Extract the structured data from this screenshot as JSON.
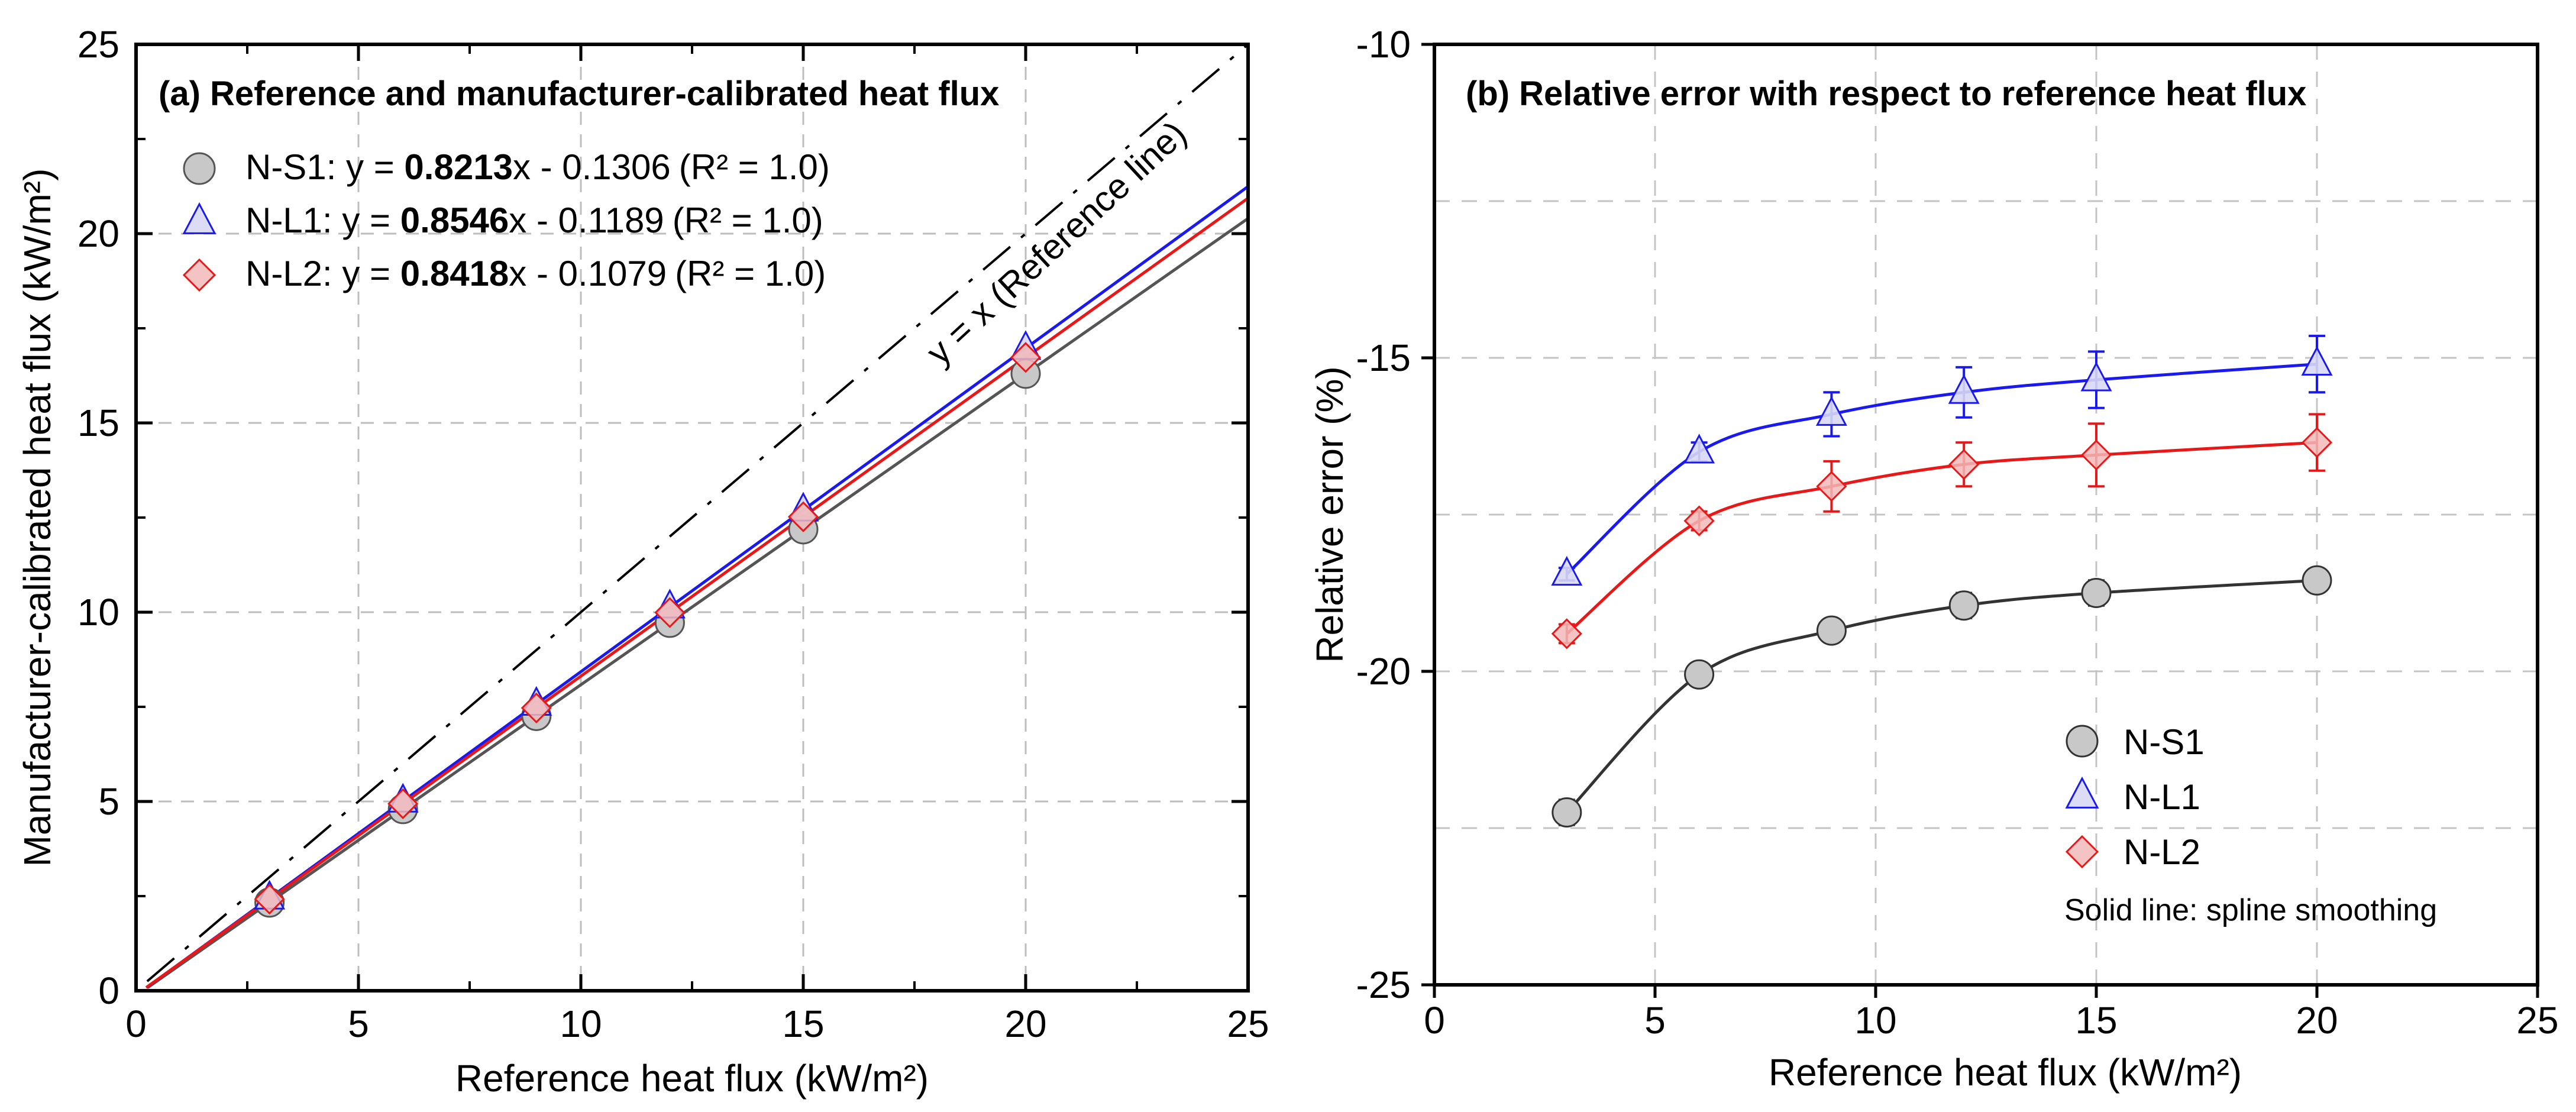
{
  "chart_data": [
    {
      "type": "line",
      "title": "(a) Reference and manufacturer-calibrated heat flux",
      "xlabel": "Reference heat flux (kW/m²)",
      "ylabel": "Manufacturer-calibrated heat flux (kW/m²)",
      "xlim": [
        0,
        25
      ],
      "ylim": [
        0,
        25
      ],
      "xticks": [
        "0",
        "5",
        "10",
        "15",
        "20",
        "25"
      ],
      "yticks": [
        "0",
        "5",
        "10",
        "15",
        "20",
        "25"
      ],
      "grid": true,
      "x": [
        3,
        6,
        9,
        12,
        15,
        20
      ],
      "reference_line": {
        "label": "y = x (Reference line)",
        "slope": 1,
        "intercept": 0
      },
      "series": [
        {
          "name": "N-S1",
          "slope": 0.8213,
          "intercept": -0.1306,
          "values": [
            2.33,
            4.8,
            7.26,
            9.72,
            12.19,
            16.3
          ],
          "legend_prefix": "N-S1: y = ",
          "slope_text": "0.8213",
          "rest_text": "x - 0.1306",
          "r2_text": "(R² = 1.0)",
          "color": "#555555",
          "marker": "circle",
          "fill": "#c8c8c8"
        },
        {
          "name": "N-L1",
          "slope": 0.8546,
          "intercept": -0.1189,
          "values": [
            2.45,
            5.01,
            7.57,
            10.14,
            12.7,
            16.97
          ],
          "legend_prefix": "N-L1: y = ",
          "slope_text": "0.8546",
          "rest_text": "x - 0.1189",
          "r2_text": "(R² = 1.0)",
          "color": "#1a1aee",
          "marker": "triangle",
          "fill": "#d8d8f4"
        },
        {
          "name": "N-L2",
          "slope": 0.8418,
          "intercept": -0.1079,
          "values": [
            2.42,
            4.94,
            7.47,
            9.99,
            12.52,
            16.73
          ],
          "legend_prefix": "N-L2: y = ",
          "slope_text": "0.8418",
          "rest_text": "x - 0.1079",
          "r2_text": "(R² = 1.0)",
          "color": "#e81818",
          "marker": "diamond",
          "fill": "#f2b8b8"
        }
      ]
    },
    {
      "type": "line",
      "title": "(b) Relative error with respect to reference heat flux",
      "xlabel": "Reference heat flux (kW/m²)",
      "ylabel": "Relative error (%)",
      "xlim": [
        0,
        25
      ],
      "ylim": [
        -25,
        -10
      ],
      "xticks": [
        "0",
        "5",
        "10",
        "15",
        "20",
        "25"
      ],
      "yticks": [
        "-25",
        "-20",
        "-15",
        "-10"
      ],
      "grid": true,
      "x": [
        3,
        6,
        9,
        12,
        15,
        20
      ],
      "note": "Solid line: spline smoothing",
      "series": [
        {
          "name": "N-S1",
          "values": [
            -22.25,
            -20.05,
            -19.35,
            -18.95,
            -18.75,
            -18.55
          ],
          "errors": [
            0.2,
            0.15,
            0.15,
            0.2,
            0.2,
            0.15
          ],
          "color": "#333333",
          "marker": "circle",
          "fill": "#c8c8c8"
        },
        {
          "name": "N-L1",
          "values": [
            -18.45,
            -16.5,
            -15.9,
            -15.55,
            -15.35,
            -15.1
          ],
          "errors": [
            0.1,
            0.15,
            0.35,
            0.4,
            0.45,
            0.45
          ],
          "color": "#1a1aee",
          "marker": "triangle",
          "fill": "#d8d8f4"
        },
        {
          "name": "N-L2",
          "values": [
            -19.4,
            -17.6,
            -17.05,
            -16.7,
            -16.55,
            -16.35
          ],
          "errors": [
            0.15,
            0.15,
            0.4,
            0.35,
            0.5,
            0.45
          ],
          "color": "#e81818",
          "marker": "diamond",
          "fill": "#f2b8b8"
        }
      ]
    }
  ]
}
